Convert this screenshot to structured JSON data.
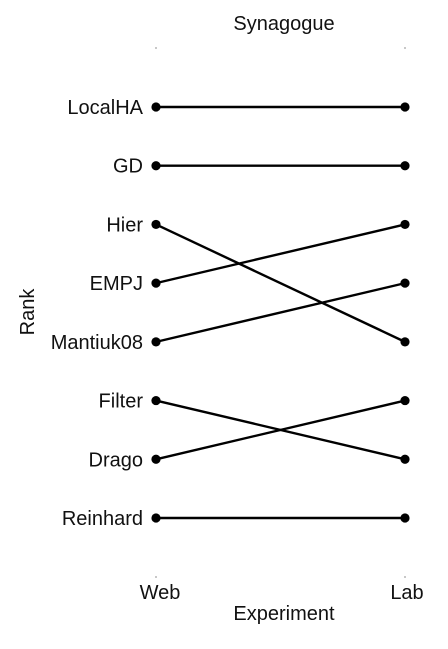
{
  "chart_data": {
    "type": "line",
    "title": "Synagogue",
    "xlabel": "Experiment",
    "ylabel": "Rank",
    "categories": [
      "Web",
      "Lab"
    ],
    "rank_labels": [
      "LocalHA",
      "GD",
      "Hier",
      "EMPJ",
      "Mantiuk08",
      "Filter",
      "Drago",
      "Reinhard"
    ],
    "series": [
      {
        "name": "LocalHA",
        "values": [
          1,
          1
        ]
      },
      {
        "name": "GD",
        "values": [
          2,
          2
        ]
      },
      {
        "name": "Hier",
        "values": [
          3,
          5
        ]
      },
      {
        "name": "EMPJ",
        "values": [
          4,
          3
        ]
      },
      {
        "name": "Mantiuk08",
        "values": [
          5,
          4
        ]
      },
      {
        "name": "Filter",
        "values": [
          6,
          7
        ]
      },
      {
        "name": "Drago",
        "values": [
          7,
          6
        ]
      },
      {
        "name": "Reinhard",
        "values": [
          8,
          8
        ]
      }
    ],
    "ylim": [
      1,
      8
    ],
    "grid": false,
    "legend": "none"
  }
}
